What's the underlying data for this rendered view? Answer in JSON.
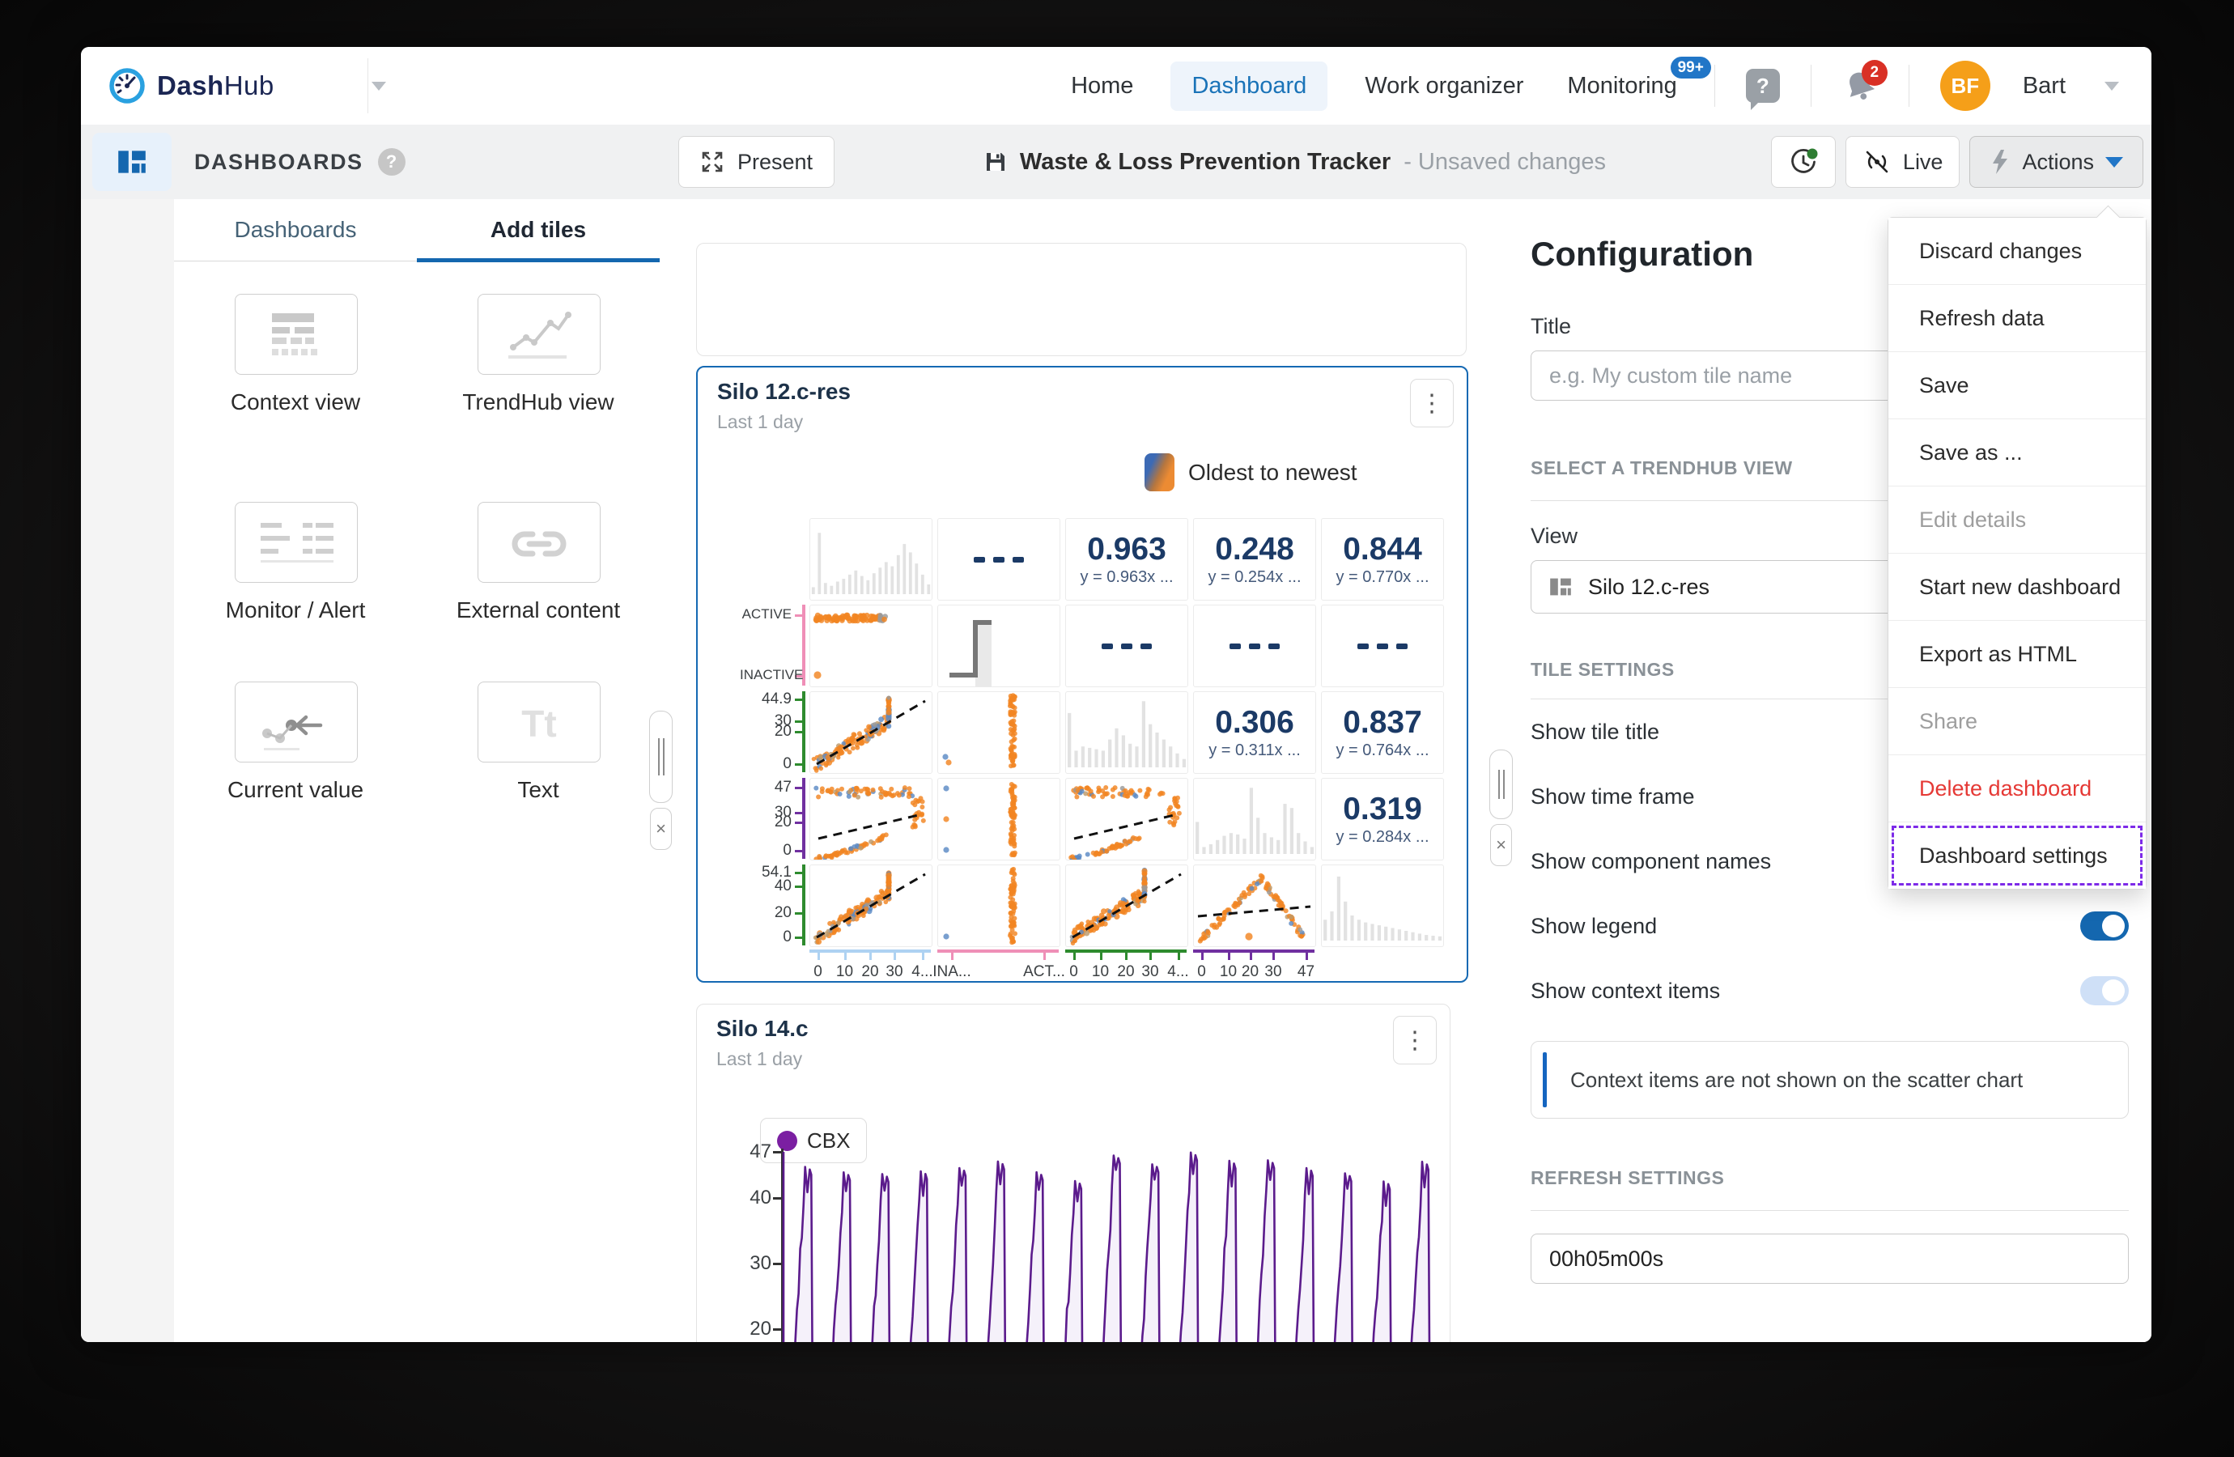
{
  "app": {
    "brand": {
      "bold": "Dash",
      "light": "Hub"
    },
    "nav": {
      "home": "Home",
      "dashboard": "Dashboard",
      "work_organizer": "Work organizer",
      "monitoring": "Monitoring",
      "monitoring_badge": "99+",
      "notifications_badge": "2"
    },
    "user": {
      "initials": "BF",
      "name": "Bart"
    }
  },
  "toolbar": {
    "present_label": "Present",
    "doc_title": "Waste & Loss Prevention Tracker",
    "doc_status": "- Unsaved changes",
    "live_label": "Live",
    "actions_label": "Actions"
  },
  "sidebar": {
    "header": "DASHBOARDS",
    "tabs": [
      {
        "label": "Dashboards",
        "active": false
      },
      {
        "label": "Add tiles",
        "active": true
      }
    ],
    "tiles": [
      {
        "label": "Context view",
        "icon": "context-view"
      },
      {
        "label": "TrendHub view",
        "icon": "trendhub-view"
      },
      {
        "label": "Monitor / Alert",
        "icon": "monitor-alert"
      },
      {
        "label": "External content",
        "icon": "external-content"
      },
      {
        "label": "Current value",
        "icon": "current-value"
      },
      {
        "label": "Text",
        "icon": "text"
      }
    ]
  },
  "config": {
    "heading": "Configuration",
    "title_label": "Title",
    "title_placeholder": "e.g. My custom tile name",
    "section_view": "SELECT A TRENDHUB VIEW",
    "view_label": "View",
    "view_value": "Silo 12.c-res",
    "section_tile": "TILE SETTINGS",
    "settings": [
      {
        "label": "Show tile title",
        "state": "on"
      },
      {
        "label": "Show time frame",
        "state": "on"
      },
      {
        "label": "Show component names",
        "state": "on"
      },
      {
        "label": "Show legend",
        "state": "on"
      },
      {
        "label": "Show context items",
        "state": "on-disabled"
      }
    ],
    "note": "Context items are not shown on the scatter chart",
    "section_refresh": "REFRESH SETTINGS",
    "refresh_value": "00h05m00s"
  },
  "actions_menu": {
    "items": [
      {
        "label": "Discard changes",
        "state": "normal"
      },
      {
        "label": "Refresh data",
        "state": "normal"
      },
      {
        "label": "Save",
        "state": "normal"
      },
      {
        "label": "Save as ...",
        "state": "normal"
      },
      {
        "label": "Edit details",
        "state": "disabled"
      },
      {
        "label": "Start new dashboard",
        "state": "normal"
      },
      {
        "label": "Export as HTML",
        "state": "normal"
      },
      {
        "label": "Share",
        "state": "disabled"
      },
      {
        "label": "Delete dashboard",
        "state": "danger"
      },
      {
        "label": "Dashboard settings",
        "state": "focused"
      }
    ]
  },
  "colors": {
    "accent_blue": "#1467af",
    "point_orange": "#f28522",
    "point_blue": "#5b8ac5",
    "point_tan": "#bd9a6a",
    "point_gray": "#9a9a9a",
    "hist_gray": "#e2e2e2",
    "trend_black": "#111111",
    "series_purple": "#5b1b8c",
    "danger_red": "#e53935",
    "focus_purple": "#7d2ae8"
  },
  "chart_data": [
    {
      "type": "scatter_matrix",
      "tile_title": "Silo 12.c-res",
      "timeframe": "Last 1 day",
      "legend": "Oldest to newest",
      "gradient": [
        "#3c6ab5",
        "#ec8b33"
      ],
      "rows": [
        {
          "color": null,
          "ticks": []
        },
        {
          "color": "#ef8fb7",
          "ticks": [
            {
              "label": "ACTIVE",
              "pos": 0.13
            },
            {
              "label": "INACTIVE",
              "pos": 0.88
            }
          ]
        },
        {
          "color": "#2e8b2e",
          "ticks": [
            {
              "label": "44.9",
              "pos": 0.1
            },
            {
              "label": "30",
              "pos": 0.37
            },
            {
              "label": "20",
              "pos": 0.5
            },
            {
              "label": "0",
              "pos": 0.9
            }
          ]
        },
        {
          "color": "#7030a0",
          "ticks": [
            {
              "label": "47",
              "pos": 0.12
            },
            {
              "label": "30",
              "pos": 0.43
            },
            {
              "label": "20",
              "pos": 0.55
            },
            {
              "label": "0",
              "pos": 0.9
            }
          ]
        },
        {
          "color": "#2e8b2e",
          "ticks": [
            {
              "label": "54.1",
              "pos": 0.1
            },
            {
              "label": "40",
              "pos": 0.27
            },
            {
              "label": "20",
              "pos": 0.6
            },
            {
              "label": "0",
              "pos": 0.9
            }
          ]
        }
      ],
      "cols": [
        {
          "color": "#aed2f2",
          "ticks": [
            {
              "label": "0",
              "pos": 0.07
            },
            {
              "label": "10",
              "pos": 0.29
            },
            {
              "label": "20",
              "pos": 0.5
            },
            {
              "label": "30",
              "pos": 0.7
            },
            {
              "label": "4...",
              "pos": 0.93
            }
          ]
        },
        {
          "color": "#ef8fb7",
          "ticks": [
            {
              "label": "INA...",
              "pos": 0.12
            },
            {
              "label": "ACT...",
              "pos": 0.88
            }
          ]
        },
        {
          "color": "#2e8b2e",
          "ticks": [
            {
              "label": "0",
              "pos": 0.07
            },
            {
              "label": "10",
              "pos": 0.29
            },
            {
              "label": "20",
              "pos": 0.5
            },
            {
              "label": "30",
              "pos": 0.7
            },
            {
              "label": "4...",
              "pos": 0.93
            }
          ]
        },
        {
          "color": "#7030a0",
          "ticks": [
            {
              "label": "0",
              "pos": 0.07
            },
            {
              "label": "10",
              "pos": 0.29
            },
            {
              "label": "20",
              "pos": 0.47
            },
            {
              "label": "30",
              "pos": 0.66
            },
            {
              "label": "47",
              "pos": 0.93
            }
          ]
        },
        {
          "color": null,
          "ticks": []
        }
      ],
      "cells": [
        [
          {
            "kind": "hist",
            "bars": [
              10,
              88,
              16,
              12,
              18,
              22,
              28,
              34,
              26,
              20,
              30,
              38,
              46,
              40,
              56,
              72,
              60,
              44,
              28,
              14
            ]
          },
          {
            "kind": "dashes"
          },
          {
            "kind": "corr",
            "value": "0.963",
            "formula": "y = 0.963x ..."
          },
          {
            "kind": "corr",
            "value": "0.248",
            "formula": "y = 0.254x ..."
          },
          {
            "kind": "corr",
            "value": "0.844",
            "formula": "y = 0.770x ..."
          }
        ],
        [
          {
            "kind": "status",
            "seed": 21
          },
          {
            "kind": "step"
          },
          {
            "kind": "dashes"
          },
          {
            "kind": "dashes"
          },
          {
            "kind": "dashes"
          }
        ],
        [
          {
            "kind": "scatter_up",
            "seed": 3
          },
          {
            "kind": "strip",
            "seed": 4,
            "dots": [
              [
                9,
                80
              ],
              [
                13,
                87
              ]
            ]
          },
          {
            "kind": "hist",
            "bars": [
              78,
              24,
              30,
              28,
              26,
              24,
              40,
              56,
              46,
              34,
              30,
              95,
              62,
              50,
              40,
              30,
              20,
              12
            ]
          },
          {
            "kind": "corr",
            "value": "0.306",
            "formula": "y = 0.311x ..."
          },
          {
            "kind": "corr",
            "value": "0.837",
            "formula": "y = 0.764x ..."
          }
        ],
        [
          {
            "kind": "hook",
            "seed": 5
          },
          {
            "kind": "strip",
            "seed": 6,
            "dots": [
              [
                10,
                12
              ],
              [
                10,
                50
              ],
              [
                10,
                88
              ]
            ]
          },
          {
            "kind": "hook",
            "seed": 7
          },
          {
            "kind": "hist",
            "bars": [
              46,
              10,
              14,
              20,
              26,
              30,
              28,
              22,
              95,
              52,
              30,
              24,
              20,
              72,
              66,
              30,
              18,
              10
            ]
          },
          {
            "kind": "corr",
            "value": "0.319",
            "formula": "y = 0.284x ..."
          }
        ],
        [
          {
            "kind": "scatter_up",
            "seed": 8
          },
          {
            "kind": "strip",
            "seed": 9,
            "dots": [
              [
                10,
                88
              ]
            ]
          },
          {
            "kind": "scatter_up",
            "seed": 10
          },
          {
            "kind": "mountain",
            "seed": 11
          },
          {
            "kind": "hist",
            "bars": [
              30,
              42,
              92,
              56,
              36,
              30,
              26,
              24,
              22,
              20,
              18,
              16,
              14,
              12,
              10,
              8,
              7,
              6
            ]
          }
        ]
      ]
    },
    {
      "type": "line",
      "tile_title": "Silo 14.c",
      "timeframe": "Last 1 day",
      "series": [
        {
          "name": "CBX",
          "color": "#7b1fa2"
        }
      ],
      "yticks": [
        "47",
        "40",
        "30",
        "20"
      ],
      "ymax": 47,
      "spikes": 17,
      "peak_min": 42,
      "peak_max": 46.9,
      "baseline": 12,
      "pattern": "sawtooth"
    }
  ]
}
